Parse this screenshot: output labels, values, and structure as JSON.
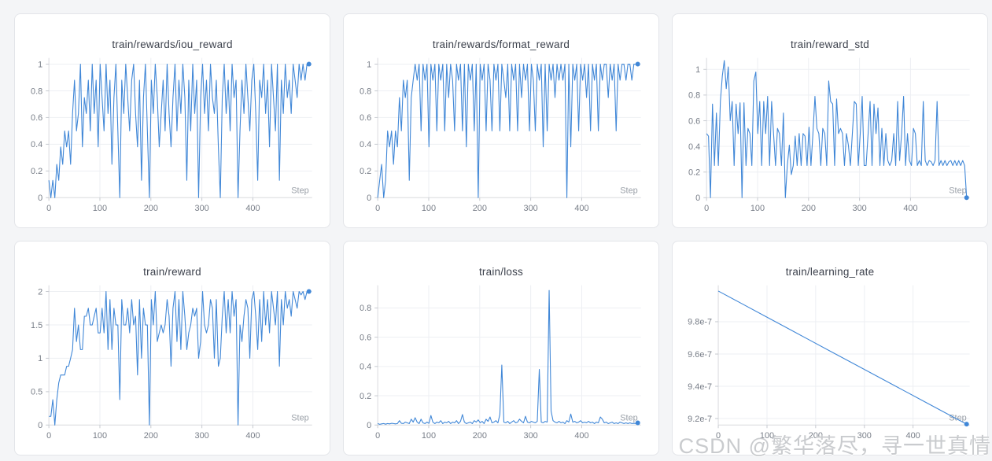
{
  "page": {
    "background": "#f4f5f7"
  },
  "watermark": {
    "text": "CSDN @繁华落尽，寻一世真情",
    "color": "#c9cbce"
  },
  "chart_style": {
    "line_color": "#4087d7",
    "grid_color": "#edeff3",
    "axis_color": "#d8dade",
    "tick_color": "#c6c9cf",
    "tick_label_color": "#787e88",
    "step_label_color": "#9aa0a8",
    "title_color": "#3d424d"
  },
  "chart_data": [
    {
      "type": "line",
      "title": "train/rewards/iou_reward",
      "xlabel": "Step",
      "legend_position": "none",
      "grid": true,
      "margin_left": 43,
      "x_max": 510,
      "x_ticks": [
        0,
        100,
        200,
        300,
        400
      ],
      "x_tick_labels": [
        "0",
        "100",
        "200",
        "300",
        "400"
      ],
      "ylim": [
        0,
        1.047
      ],
      "y_ticks": [
        0,
        0.2,
        0.4,
        0.6,
        0.8,
        1
      ],
      "y_tick_labels": [
        "0",
        "0.2",
        "0.4",
        "0.6",
        "0.8",
        "1"
      ],
      "values": [
        0.13,
        0,
        0.13,
        0,
        0.25,
        0.13,
        0.38,
        0.25,
        0.5,
        0.38,
        0.5,
        0.25,
        0.63,
        0.88,
        0.5,
        0.63,
        1,
        0.38,
        0.75,
        0.63,
        0.88,
        0.5,
        1,
        0.63,
        0.88,
        0.38,
        1,
        0.75,
        0.5,
        1,
        0.63,
        0.88,
        0.25,
        0.75,
        1,
        0.5,
        0,
        0.88,
        0.63,
        1,
        0.75,
        0.5,
        0.88,
        1,
        0.63,
        0.38,
        0.88,
        0.13,
        0.75,
        1,
        0.5,
        0,
        0.88,
        0.63,
        1,
        0.75,
        0.38,
        0.63,
        0.88,
        0.5,
        1,
        0.63,
        0.38,
        0.75,
        1,
        0.5,
        0.88,
        0.63,
        1,
        0.75,
        0.13,
        0.88,
        0.5,
        1,
        0.63,
        0.88,
        0,
        0.75,
        1,
        0.63,
        0.88,
        0.5,
        1,
        0.75,
        0.63,
        0.88,
        0.38,
        0,
        0.75,
        1,
        0.63,
        0.88,
        0.5,
        1,
        0.75,
        0.88,
        0,
        0.5,
        0.88,
        0.63,
        1,
        0.75,
        0.5,
        0.88,
        1,
        0.63,
        0.13,
        0.88,
        0.75,
        1,
        0.63,
        0.88,
        0.38,
        1,
        0.75,
        0.5,
        1,
        0.13,
        0.88,
        0.63,
        1,
        0.75,
        0.88,
        0.63,
        1,
        0.88,
        0.75,
        1,
        0.88,
        1,
        0.88,
        1,
        1
      ]
    },
    {
      "type": "line",
      "title": "train/rewards/format_reward",
      "xlabel": "Step",
      "legend_position": "none",
      "grid": true,
      "margin_left": 43,
      "x_max": 510,
      "x_ticks": [
        0,
        100,
        200,
        300,
        400
      ],
      "x_tick_labels": [
        "0",
        "100",
        "200",
        "300",
        "400"
      ],
      "ylim": [
        0,
        1.047
      ],
      "y_ticks": [
        0,
        0.2,
        0.4,
        0.6,
        0.8,
        1
      ],
      "y_tick_labels": [
        "0",
        "0.2",
        "0.4",
        "0.6",
        "0.8",
        "1"
      ],
      "values": [
        0,
        0.13,
        0.25,
        0,
        0.13,
        0.5,
        0.38,
        0.5,
        0.25,
        0.5,
        0.38,
        0.75,
        0.5,
        0.88,
        0.75,
        0.88,
        0.13,
        0.75,
        0.88,
        1,
        0.88,
        1,
        0.5,
        1,
        0.88,
        1,
        0.38,
        1,
        0.88,
        1,
        0.5,
        1,
        0.88,
        1,
        0.5,
        1,
        0.75,
        1,
        0.88,
        0.5,
        1,
        0.88,
        1,
        0.5,
        1,
        0.38,
        1,
        0.88,
        1,
        0.5,
        1,
        0,
        1,
        0.88,
        1,
        0.5,
        1,
        0.88,
        0.5,
        1,
        0.88,
        1,
        0.5,
        1,
        0.88,
        0.75,
        1,
        0.5,
        1,
        0.88,
        1,
        0.5,
        1,
        0.75,
        1,
        0.88,
        1,
        0.5,
        1,
        0.88,
        0.5,
        1,
        0.88,
        1,
        0.38,
        1,
        0.5,
        1,
        0.88,
        1,
        0.75,
        1,
        0.88,
        1,
        0.88,
        1,
        0,
        1,
        0.38,
        1,
        0.88,
        1,
        0.5,
        1,
        0.88,
        1,
        0.75,
        1,
        0.5,
        1,
        0.88,
        1,
        0.5,
        1,
        0.88,
        1,
        1,
        0.75,
        1,
        0.88,
        1,
        0.5,
        1,
        0.88,
        1,
        1,
        0.88,
        1,
        1,
        0.88,
        1,
        1,
        1
      ]
    },
    {
      "type": "line",
      "title": "train/reward_std",
      "xlabel": "Step",
      "legend_position": "none",
      "grid": true,
      "margin_left": 43,
      "x_max": 510,
      "x_ticks": [
        0,
        100,
        200,
        300,
        400
      ],
      "x_tick_labels": [
        "0",
        "100",
        "200",
        "300",
        "400"
      ],
      "ylim": [
        0,
        1.09
      ],
      "y_ticks": [
        0,
        0.2,
        0.4,
        0.6,
        0.8,
        1
      ],
      "y_tick_labels": [
        "0",
        "0.2",
        "0.4",
        "0.6",
        "0.8",
        "1"
      ],
      "values": [
        0.5,
        0.48,
        0,
        0.73,
        0.25,
        0.66,
        0.25,
        0.75,
        0.95,
        1.07,
        0.85,
        1.02,
        0.6,
        0.75,
        0.25,
        0.73,
        0.5,
        0.74,
        0,
        0.74,
        0.25,
        0.54,
        0.5,
        0.25,
        0.91,
        0.98,
        0.5,
        0.75,
        0.25,
        0.75,
        0.5,
        0.79,
        0.25,
        0.75,
        0.5,
        0.25,
        0.54,
        0.5,
        0.25,
        0.66,
        0,
        0.25,
        0.41,
        0.18,
        0.25,
        0.48,
        0.25,
        0.5,
        0.25,
        0.5,
        0.48,
        0.25,
        0.55,
        0.25,
        0.5,
        0.79,
        0.54,
        0.5,
        0.25,
        0.54,
        0.5,
        0.25,
        0.91,
        0.75,
        0.73,
        0.25,
        0.77,
        0.5,
        0.54,
        0.5,
        0.25,
        0.5,
        0.41,
        0.25,
        0.5,
        0.75,
        0.73,
        0.25,
        0.5,
        0.79,
        0.25,
        0.25,
        0.5,
        0.75,
        0.25,
        0.73,
        0.5,
        0.7,
        0.25,
        0.54,
        0.25,
        0.5,
        0.29,
        0.25,
        0.29,
        0.5,
        0.25,
        0.75,
        0.29,
        0.5,
        0.79,
        0.25,
        0.5,
        0.29,
        0.25,
        0.54,
        0.5,
        0.25,
        0.29,
        0.25,
        0.75,
        0.29,
        0.25,
        0.29,
        0.28,
        0.25,
        0.29,
        0.75,
        0.25,
        0.29,
        0.25,
        0.29,
        0.25,
        0.28,
        0.29,
        0.25,
        0.29,
        0.25,
        0.29,
        0.25,
        0.29,
        0.25,
        0
      ]
    },
    {
      "type": "line",
      "title": "train/reward",
      "xlabel": "Step",
      "legend_position": "none",
      "grid": true,
      "margin_left": 43,
      "x_max": 510,
      "x_ticks": [
        0,
        100,
        200,
        300,
        400
      ],
      "x_tick_labels": [
        "0",
        "100",
        "200",
        "300",
        "400"
      ],
      "ylim": [
        0,
        2.094
      ],
      "y_ticks": [
        0,
        0.5,
        1,
        1.5,
        2
      ],
      "y_tick_labels": [
        "0",
        "0.5",
        "1",
        "1.5",
        "2"
      ],
      "values": [
        0.13,
        0.13,
        0.38,
        0,
        0.38,
        0.63,
        0.75,
        0.75,
        0.75,
        0.88,
        0.88,
        1,
        1.13,
        1.75,
        1.25,
        1.5,
        1.13,
        1.13,
        1.63,
        1.63,
        1.75,
        1.5,
        1.5,
        1.63,
        1.75,
        1.38,
        1.38,
        1.75,
        1.38,
        2,
        1.13,
        1.88,
        1.13,
        1.75,
        1.5,
        1.5,
        0.38,
        1.88,
        1.5,
        1.5,
        1.75,
        1.38,
        1.88,
        1.5,
        1.63,
        0.75,
        1.88,
        1,
        1.75,
        1.5,
        1.5,
        0,
        1.88,
        1.5,
        2,
        1.25,
        1.38,
        1.5,
        1.38,
        1.5,
        1.88,
        1.63,
        0.88,
        1.75,
        2,
        1.25,
        1.88,
        1.13,
        2,
        1.63,
        1.13,
        1.38,
        1.5,
        1.75,
        1.63,
        1.75,
        1,
        1.25,
        2,
        1.5,
        1.38,
        1.5,
        1.88,
        1.75,
        1,
        1.88,
        0.88,
        1,
        1.63,
        2,
        1.38,
        1.88,
        1.38,
        2,
        1.63,
        1.88,
        0,
        1.5,
        1.25,
        1.63,
        1.88,
        1.75,
        1,
        1.88,
        2,
        1.63,
        1.13,
        1.88,
        1.25,
        2,
        1.5,
        1.88,
        1.38,
        2,
        1.75,
        1.5,
        2,
        0.88,
        1.88,
        1.5,
        2,
        1.75,
        1.88,
        1.63,
        2,
        1.88,
        1.75,
        2,
        1.95,
        2,
        1.88,
        2,
        2
      ]
    },
    {
      "type": "line",
      "title": "train/loss",
      "xlabel": "Step",
      "legend_position": "none",
      "grid": true,
      "margin_left": 43,
      "x_max": 510,
      "x_ticks": [
        0,
        100,
        200,
        300,
        400
      ],
      "x_tick_labels": [
        "0",
        "100",
        "200",
        "300",
        "400"
      ],
      "ylim": [
        0,
        0.955
      ],
      "y_ticks": [
        0,
        0.2,
        0.4,
        0.6,
        0.8
      ],
      "y_tick_labels": [
        "0",
        "0.2",
        "0.4",
        "0.6",
        "0.8"
      ],
      "values": [
        0.01,
        0.005,
        0.008,
        0.01,
        0.006,
        0.01,
        0.008,
        0.012,
        0.01,
        0.008,
        0.01,
        0.03,
        0.012,
        0.01,
        0.02,
        0.015,
        0.01,
        0.04,
        0.02,
        0.05,
        0.02,
        0.01,
        0.04,
        0.015,
        0.01,
        0.02,
        0.012,
        0.065,
        0.02,
        0.01,
        0.02,
        0.015,
        0.03,
        0.01,
        0.02,
        0.015,
        0.025,
        0.01,
        0.02,
        0.015,
        0.03,
        0.01,
        0.025,
        0.072,
        0.02,
        0.01,
        0.015,
        0.02,
        0.01,
        0.03,
        0.02,
        0.035,
        0.015,
        0.025,
        0.01,
        0.04,
        0.025,
        0.055,
        0.015,
        0.02,
        0.03,
        0.015,
        0.072,
        0.41,
        0.02,
        0.015,
        0.025,
        0.01,
        0.02,
        0.03,
        0.015,
        0.02,
        0.04,
        0.025,
        0.015,
        0.06,
        0.02,
        0.015,
        0.025,
        0.02,
        0.015,
        0.025,
        0.38,
        0.02,
        0.015,
        0.025,
        0.02,
        0.92,
        0.095,
        0.03,
        0.02,
        0.015,
        0.025,
        0.015,
        0.02,
        0.01,
        0.03,
        0.02,
        0.075,
        0.02,
        0.025,
        0.015,
        0.02,
        0.03,
        0.015,
        0.02,
        0.015,
        0.025,
        0.015,
        0.02,
        0.01,
        0.02,
        0.015,
        0.055,
        0.04,
        0.015,
        0.02,
        0.01,
        0.015,
        0.02,
        0.01,
        0.015,
        0.01,
        0.02,
        0.015,
        0.01,
        0.015,
        0.01,
        0.015,
        0.01,
        0.012,
        0.01,
        0.015
      ]
    },
    {
      "type": "line",
      "title": "train/learning_rate",
      "xlabel": "Step",
      "legend_position": "none",
      "grid": true,
      "margin_left": 58,
      "x_max": 510,
      "x_ticks": [
        0,
        100,
        200,
        300,
        400
      ],
      "x_tick_labels": [
        "0",
        "100",
        "200",
        "300",
        "400"
      ],
      "ylim": [
        9.16e-07,
        1.0026e-06
      ],
      "y_ticks": [
        9.2e-07,
        9.4e-07,
        9.6e-07,
        9.8e-07
      ],
      "y_tick_labels": [
        "9.2e-7",
        "9.4e-7",
        "9.6e-7",
        "9.8e-7"
      ],
      "values": [
        9.99e-07,
        9.915e-07,
        9.84e-07,
        9.765e-07,
        9.69e-07,
        9.615e-07,
        9.54e-07,
        9.465e-07,
        9.39e-07,
        9.315e-07,
        9.24e-07,
        9.166e-07
      ]
    }
  ]
}
